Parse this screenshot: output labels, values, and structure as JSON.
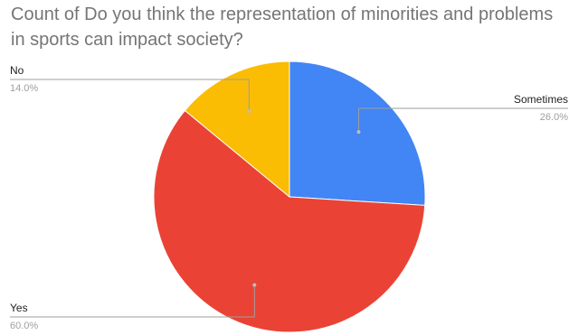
{
  "chart_data": {
    "type": "pie",
    "title": "Count of Do you think the representation of minorities and problems in sports can impact society?",
    "slices": [
      {
        "label": "Sometimes",
        "value": 26.0,
        "percent_label": "26.0%",
        "color": "#4285F4"
      },
      {
        "label": "Yes",
        "value": 60.0,
        "percent_label": "60.0%",
        "color": "#EA4335"
      },
      {
        "label": "No",
        "value": 14.0,
        "percent_label": "14.0%",
        "color": "#FBBC04"
      }
    ],
    "start_angle_deg": 0,
    "direction": "clockwise",
    "legend": "none"
  }
}
